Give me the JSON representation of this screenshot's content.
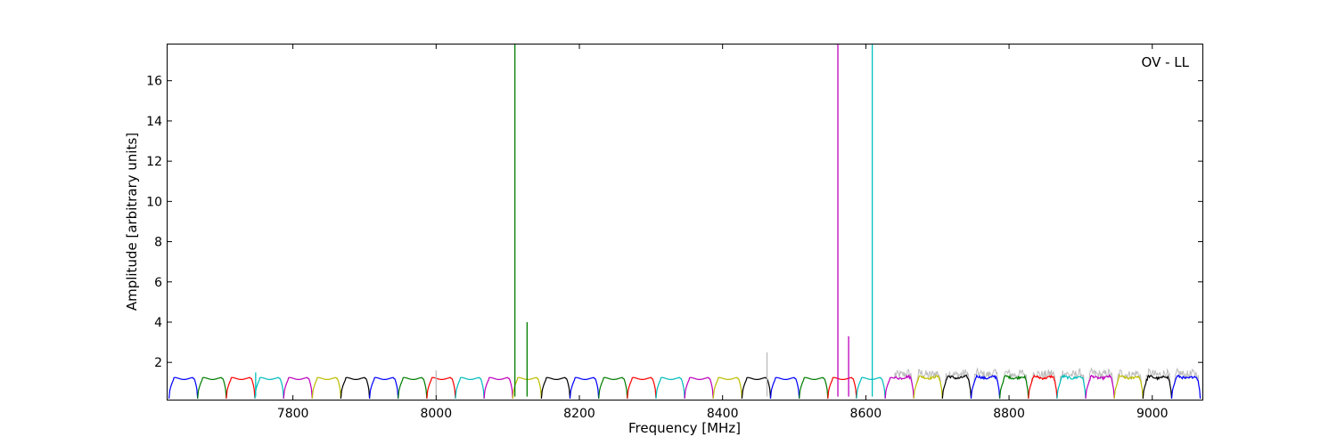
{
  "chart_data": {
    "type": "line",
    "title": "",
    "annotation": "OV - LL",
    "xlabel": "Frequency [MHz]",
    "ylabel": "Amplitude [arbitrary units]",
    "xlim": [
      7625,
      9070
    ],
    "ylim": [
      0.15,
      17.8
    ],
    "x_ticks": [
      7800,
      8000,
      8200,
      8400,
      8600,
      8800,
      9000
    ],
    "y_ticks": [
      2,
      4,
      6,
      8,
      10,
      12,
      14,
      16
    ],
    "grid": false,
    "legend": "none",
    "band_colors": [
      "#0000ff",
      "#007f00",
      "#ff0000",
      "#00bfbf",
      "#bf00bf",
      "#bfbf00",
      "#000000"
    ],
    "band_start_mhz": 7627,
    "band_width_mhz": 40,
    "band_count": 36,
    "band_plateau": 1.2,
    "background_series": {
      "color": "#bbbbbb",
      "noisy_from_mhz": 8640
    },
    "spikes": [
      {
        "x": 8110,
        "y": 17.8,
        "color": "#007f00"
      },
      {
        "x": 8127,
        "y": 4.0,
        "color": "#007f00"
      },
      {
        "x": 8561,
        "y": 17.8,
        "color": "#bf00bf"
      },
      {
        "x": 8576,
        "y": 3.3,
        "color": "#bf00bf"
      },
      {
        "x": 8609,
        "y": 17.8,
        "color": "#00bfbf"
      },
      {
        "x": 8462,
        "y": 2.5,
        "color": "#bbbbbb"
      },
      {
        "x": 8000,
        "y": 1.6,
        "color": "#bbbbbb"
      },
      {
        "x": 7748,
        "y": 1.5,
        "color": "#00bfbf"
      }
    ]
  }
}
